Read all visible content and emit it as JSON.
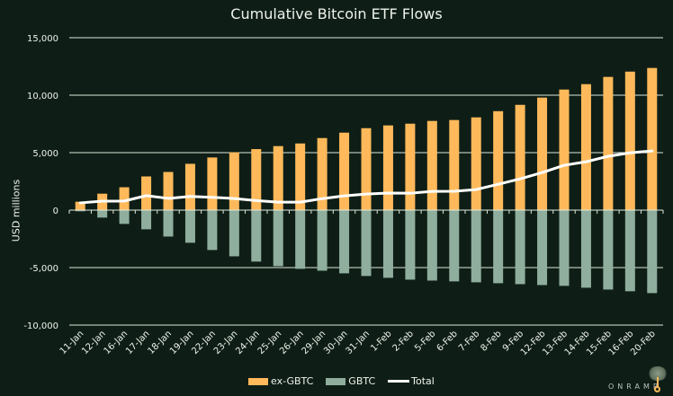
{
  "chart_data": {
    "type": "bar",
    "title": "Cumulative Bitcoin ETF Flows",
    "xlabel": "",
    "ylabel": "USD millions",
    "ylim": [
      -10000,
      15000
    ],
    "yticks": [
      15000,
      10000,
      5000,
      0,
      -5000,
      -10000
    ],
    "ytick_labels": [
      "15,000",
      "10,000",
      "5,000",
      "0",
      "-5,000",
      "-10,000"
    ],
    "grid": true,
    "legend_position": "bottom-center",
    "categories": [
      "11-Jan",
      "12-Jan",
      "16-Jan",
      "17-Jan",
      "18-Jan",
      "19-Jan",
      "22-Jan",
      "23-Jan",
      "24-Jan",
      "25-Jan",
      "26-Jan",
      "29-Jan",
      "30-Jan",
      "31-Jan",
      "1-Feb",
      "2-Feb",
      "5-Feb",
      "6-Feb",
      "7-Feb",
      "8-Feb",
      "9-Feb",
      "12-Feb",
      "13-Feb",
      "14-Feb",
      "15-Feb",
      "16-Feb",
      "20-Feb"
    ],
    "series": [
      {
        "name": "ex-GBTC",
        "type": "bar",
        "color": "#ffb95a",
        "values": [
          730,
          1430,
          1990,
          2930,
          3320,
          4030,
          4580,
          5030,
          5310,
          5570,
          5800,
          6270,
          6740,
          7130,
          7370,
          7520,
          7760,
          7840,
          8070,
          8610,
          9160,
          9790,
          10490,
          10960,
          11590,
          12050,
          12370
        ]
      },
      {
        "name": "GBTC",
        "type": "bar",
        "color": "#8fae9d",
        "values": [
          -100,
          -650,
          -1200,
          -1670,
          -2300,
          -2840,
          -3470,
          -4020,
          -4480,
          -4880,
          -5110,
          -5270,
          -5500,
          -5730,
          -5890,
          -6050,
          -6130,
          -6200,
          -6280,
          -6360,
          -6440,
          -6520,
          -6590,
          -6750,
          -6910,
          -7060,
          -7220
        ]
      },
      {
        "name": "Total",
        "type": "line",
        "color": "#ffffff",
        "values": [
          630,
          780,
          790,
          1260,
          1020,
          1190,
          1110,
          1010,
          830,
          690,
          690,
          1000,
          1240,
          1400,
          1480,
          1470,
          1630,
          1640,
          1790,
          2250,
          2720,
          3270,
          3900,
          4210,
          4680,
          4990,
          5150
        ]
      }
    ]
  },
  "brand": {
    "name": "ONRAMP"
  },
  "colors": {
    "background": "#0e1e16",
    "grid": "#dfe8dc",
    "text": "#eef2ec"
  }
}
